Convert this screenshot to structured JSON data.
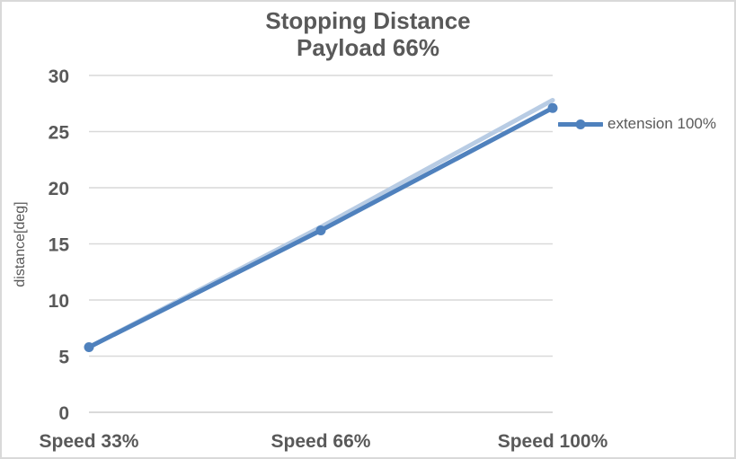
{
  "chart_data": {
    "type": "line",
    "title": "Stopping Distance",
    "subtitle": "Payload 66%",
    "categories": [
      "Speed 33%",
      "Speed 66%",
      "Speed 100%"
    ],
    "series": [
      {
        "name": "extension 100%",
        "values": [
          5.8,
          16.2,
          27.1
        ],
        "color": "#4f81bd",
        "marker": "circle",
        "line_width": 5,
        "in_legend": true
      },
      {
        "name": "(unlabeled faint line)",
        "values": [
          5.8,
          16.5,
          27.8
        ],
        "color": "#b8cce4",
        "marker": "none",
        "line_width": 5,
        "in_legend": false
      }
    ],
    "xlabel": "",
    "ylabel": "distance[deg]",
    "ylim": [
      0,
      30
    ],
    "yticks": [
      0,
      5,
      10,
      15,
      20,
      25,
      30
    ],
    "grid": true,
    "legend_position": "right",
    "colors": {
      "series_blue": "#4f81bd",
      "halo_blue": "#b8cce4",
      "gridline": "#d9d9d9",
      "zero_axis_line": "#cdcdcd",
      "text": "#595959",
      "border": "#d9d9d9"
    }
  }
}
